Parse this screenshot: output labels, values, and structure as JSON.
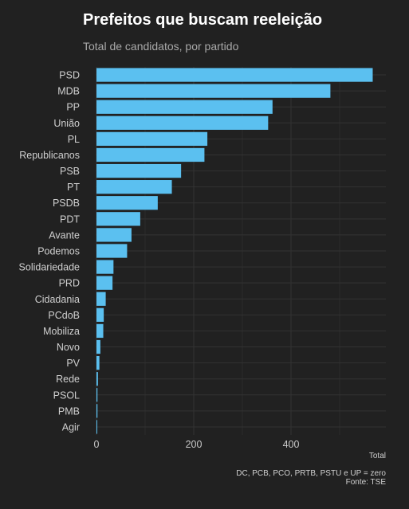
{
  "title": "Prefeitos que buscam reeleição",
  "subtitle": "Total de candidatos, por partido",
  "colors": {
    "background": "#212121",
    "bar": "#5bc0f0",
    "grid": "#333333",
    "title": "#ffffff",
    "subtitle": "#a9a9a9",
    "text": "#d0d0d0"
  },
  "chart_data": {
    "type": "bar",
    "orientation": "horizontal",
    "categories": [
      "PSD",
      "MDB",
      "PP",
      "União",
      "PL",
      "Republicanos",
      "PSB",
      "PT",
      "PSDB",
      "PDT",
      "Avante",
      "Podemos",
      "Solidariedade",
      "PRD",
      "Cidadania",
      "PCdoB",
      "Mobiliza",
      "Novo",
      "PV",
      "Rede",
      "PSOL",
      "PMB",
      "Agir"
    ],
    "values": [
      568,
      481,
      362,
      353,
      228,
      222,
      174,
      155,
      126,
      90,
      72,
      63,
      35,
      33,
      19,
      15,
      14,
      8,
      6,
      3,
      2,
      2,
      1
    ],
    "xlabel": "Total",
    "ylabel": "",
    "xlim": [
      0,
      600
    ],
    "xticks": [
      0,
      200,
      400
    ],
    "grid": true,
    "note": "DC, PCB, PCO, PRTB, PSTU e UP = zero",
    "source": "Fonte: TSE"
  }
}
